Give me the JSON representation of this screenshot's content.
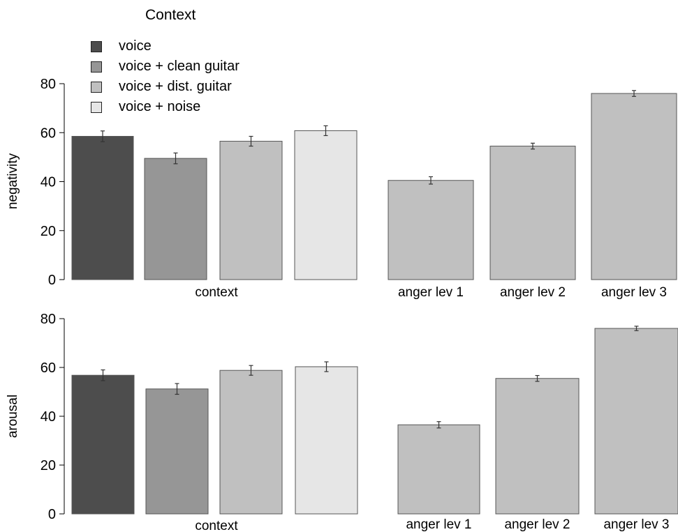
{
  "legend": {
    "title": "Context",
    "items": [
      {
        "label": "voice",
        "color": "#4d4d4d"
      },
      {
        "label": "voice + clean guitar",
        "color": "#969696"
      },
      {
        "label": "voice + dist. guitar",
        "color": "#c0c0c0"
      },
      {
        "label": "voice + noise",
        "color": "#e6e6e6"
      }
    ]
  },
  "chart_data": [
    {
      "type": "bar",
      "panel": "top",
      "ylabel": "negativity",
      "ylim": [
        0,
        80
      ],
      "yticks": [
        0,
        20,
        40,
        60,
        80
      ],
      "groups": [
        {
          "xlabel": "context",
          "categories": [
            "voice",
            "voice + clean guitar",
            "voice + dist. guitar",
            "voice + noise"
          ],
          "values": [
            58.5,
            49.5,
            56.5,
            60.8
          ],
          "errors": [
            2.2,
            2.2,
            2.0,
            2.0
          ],
          "colors": [
            "#4d4d4d",
            "#969696",
            "#c0c0c0",
            "#e6e6e6"
          ],
          "tick_labels": []
        },
        {
          "xlabel": "",
          "categories": [
            "anger lev 1",
            "anger lev 2",
            "anger lev 3"
          ],
          "values": [
            40.5,
            54.5,
            76.0
          ],
          "errors": [
            1.5,
            1.2,
            1.2
          ],
          "colors": [
            "#c0c0c0",
            "#c0c0c0",
            "#c0c0c0"
          ],
          "tick_labels": [
            "anger lev 1",
            "anger lev 2",
            "anger lev 3"
          ]
        }
      ]
    },
    {
      "type": "bar",
      "panel": "bottom",
      "ylabel": "arousal",
      "ylim": [
        0,
        80
      ],
      "yticks": [
        0,
        20,
        40,
        60,
        80
      ],
      "groups": [
        {
          "xlabel": "context",
          "categories": [
            "voice",
            "voice + clean guitar",
            "voice + dist. guitar",
            "voice + noise"
          ],
          "values": [
            56.8,
            51.2,
            58.8,
            60.3
          ],
          "errors": [
            2.2,
            2.2,
            2.0,
            2.0
          ],
          "colors": [
            "#4d4d4d",
            "#969696",
            "#c0c0c0",
            "#e6e6e6"
          ],
          "tick_labels": []
        },
        {
          "xlabel": "",
          "categories": [
            "anger lev 1",
            "anger lev 2",
            "anger lev 3"
          ],
          "values": [
            36.5,
            55.5,
            76.0
          ],
          "errors": [
            1.3,
            1.2,
            0.9
          ],
          "colors": [
            "#c0c0c0",
            "#c0c0c0",
            "#c0c0c0"
          ],
          "tick_labels": [
            "anger lev 1",
            "anger lev 2",
            "anger lev 3"
          ]
        }
      ]
    }
  ]
}
